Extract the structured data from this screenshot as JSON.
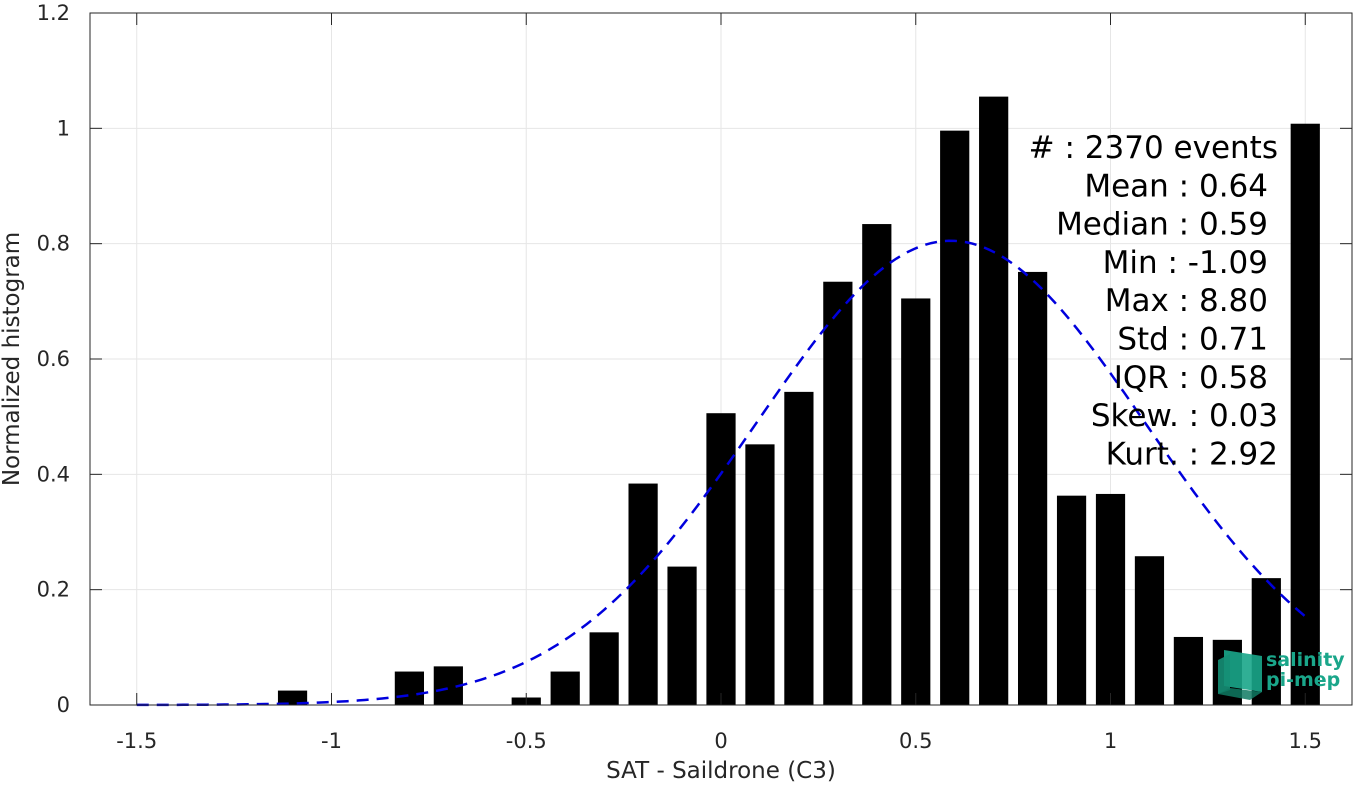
{
  "chart_data": {
    "type": "bar",
    "xlabel": "SAT - Saildrone (C3)",
    "ylabel": "Normalized histogram",
    "xlim": [
      -1.62,
      1.62
    ],
    "ylim": [
      0,
      1.2
    ],
    "xticks": [
      "-1.5",
      "-1",
      "-0.5",
      "0",
      "0.5",
      "1",
      "1.5"
    ],
    "xtick_values": [
      -1.5,
      -1,
      -0.5,
      0,
      0.5,
      1,
      1.5
    ],
    "yticks": [
      "0",
      "0.2",
      "0.4",
      "0.6",
      "0.8",
      "1",
      "1.2"
    ],
    "ytick_values": [
      0,
      0.2,
      0.4,
      0.6,
      0.8,
      1,
      1.2
    ],
    "grid": true,
    "bar_width": 0.075,
    "bar_color": "#000000",
    "bars": [
      {
        "x": -1.1,
        "value": 0.025
      },
      {
        "x": -0.8,
        "value": 0.058
      },
      {
        "x": -0.7,
        "value": 0.067
      },
      {
        "x": -0.5,
        "value": 0.013
      },
      {
        "x": -0.4,
        "value": 0.058
      },
      {
        "x": -0.3,
        "value": 0.126
      },
      {
        "x": -0.2,
        "value": 0.384
      },
      {
        "x": -0.1,
        "value": 0.24
      },
      {
        "x": 0.0,
        "value": 0.506
      },
      {
        "x": 0.1,
        "value": 0.452
      },
      {
        "x": 0.2,
        "value": 0.543
      },
      {
        "x": 0.3,
        "value": 0.734
      },
      {
        "x": 0.4,
        "value": 0.834
      },
      {
        "x": 0.5,
        "value": 0.705
      },
      {
        "x": 0.6,
        "value": 0.996
      },
      {
        "x": 0.7,
        "value": 1.055
      },
      {
        "x": 0.8,
        "value": 0.751
      },
      {
        "x": 0.9,
        "value": 0.363
      },
      {
        "x": 1.0,
        "value": 0.366
      },
      {
        "x": 1.1,
        "value": 0.258
      },
      {
        "x": 1.2,
        "value": 0.118
      },
      {
        "x": 1.3,
        "value": 0.113
      },
      {
        "x": 1.4,
        "value": 0.22
      },
      {
        "x": 1.5,
        "value": 1.008
      }
    ],
    "fit_curve": {
      "type": "normal",
      "mean": 0.59,
      "std": 0.5,
      "peak": 0.805,
      "x_range": [
        -1.5,
        1.5
      ],
      "color": "#0000dd",
      "style": "dashed"
    },
    "stats": [
      "#  : 2370 events",
      "Mean : 0.64",
      "Median : 0.59",
      "Min : -1.09",
      "Max : 8.80",
      "Std : 0.71",
      "IQR : 0.58",
      "Skew. : 0.03",
      "Kurt. : 2.92"
    ]
  },
  "logo": {
    "line1": "salinity",
    "line2": "pi-mep",
    "color": "#1aa68a"
  }
}
